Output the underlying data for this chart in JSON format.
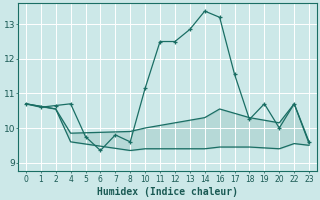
{
  "xlabel": "Humidex (Indice chaleur)",
  "bg_color": "#cce8e8",
  "grid_color": "#ffffff",
  "line_color": "#1a6e64",
  "xlim": [
    -0.5,
    19.5
  ],
  "ylim": [
    8.75,
    13.6
  ],
  "xtick_labels": [
    "0",
    "1",
    "2",
    "4",
    "5",
    "6",
    "7",
    "8",
    "10",
    "11",
    "12",
    "13",
    "14",
    "16",
    "17",
    "18",
    "19",
    "20",
    "22",
    "23"
  ],
  "yticks": [
    9,
    10,
    11,
    12,
    13
  ],
  "series1_idx": [
    0,
    1,
    2,
    3,
    4,
    5,
    6,
    7,
    8,
    9,
    10,
    11,
    12,
    13,
    14,
    15,
    16,
    17,
    18,
    19
  ],
  "series1_y": [
    10.7,
    10.6,
    10.65,
    10.7,
    9.75,
    9.35,
    9.8,
    9.6,
    11.15,
    12.5,
    12.5,
    12.85,
    13.38,
    13.2,
    11.55,
    10.25,
    10.7,
    10.0,
    10.7,
    9.6
  ],
  "series2_idx": [
    0,
    2,
    3,
    7,
    8,
    12,
    13,
    15,
    17,
    18,
    19
  ],
  "series2_y": [
    10.7,
    10.55,
    9.85,
    9.9,
    10.0,
    10.3,
    10.55,
    10.3,
    10.15,
    10.7,
    9.55
  ],
  "series3_idx": [
    0,
    2,
    3,
    7,
    8,
    12,
    13,
    15,
    17,
    18,
    19
  ],
  "series3_y": [
    10.7,
    10.55,
    9.6,
    9.35,
    9.4,
    9.4,
    9.45,
    9.45,
    9.4,
    9.55,
    9.5
  ]
}
